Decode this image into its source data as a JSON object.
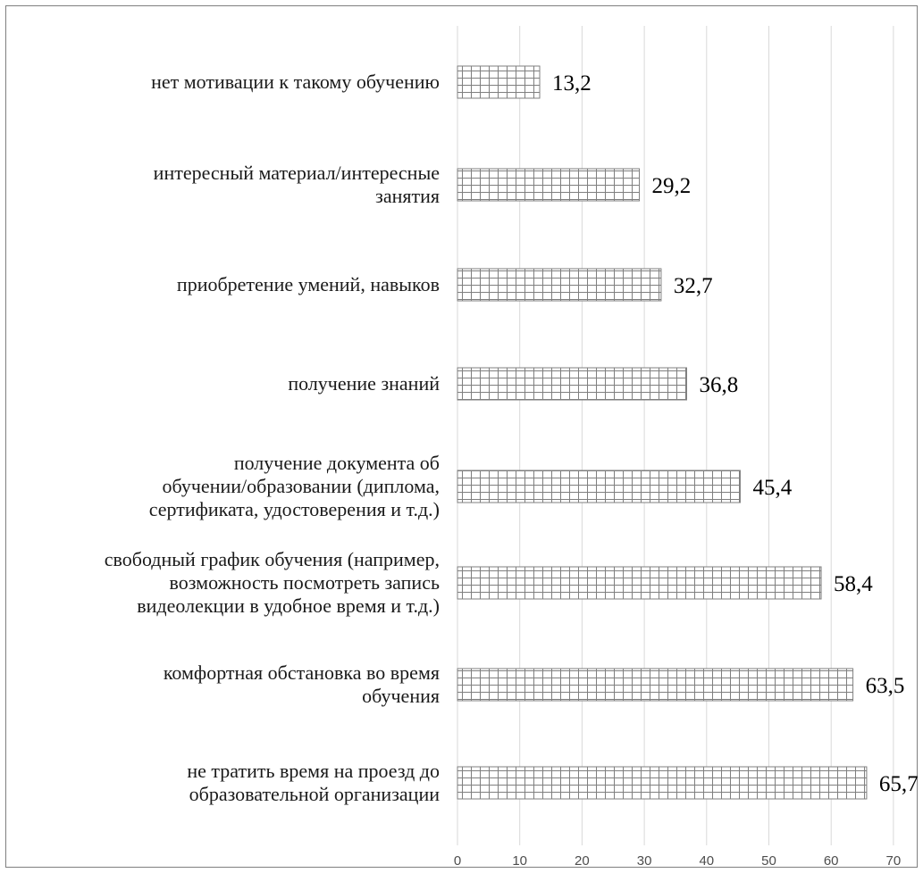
{
  "chart_data": {
    "type": "bar",
    "orientation": "horizontal",
    "categories": [
      "нет мотивации к такому  обучению",
      "интересный материал/интересные занятия",
      "приобретение умений, навыков",
      "получение знаний",
      "получение документа об обучении/образовании (диплома, сертификата, удостоверения и т.д.)",
      "свободный график обучения (например, возможность посмотреть запись видеолекции в удобное время и т.д.)",
      "комфортная  обстановка во время обучения",
      "не тратить время  на проезд до образовательной организации"
    ],
    "category_lines": [
      [
        "нет мотивации к такому  обучению"
      ],
      [
        "интересный материал/интересные",
        "занятия"
      ],
      [
        "приобретение умений, навыков"
      ],
      [
        "получение знаний"
      ],
      [
        "получение документа об",
        "обучении/образовании (диплома,",
        "сертификата, удостоверения и т.д.)"
      ],
      [
        "свободный график обучения (например,",
        "возможность посмотреть запись",
        "видеолекции в удобное время и т.д.)"
      ],
      [
        "комфортная  обстановка во время",
        "обучения"
      ],
      [
        "не тратить время  на проезд до",
        "образовательной организации"
      ]
    ],
    "values": [
      13.2,
      29.2,
      32.7,
      36.8,
      45.4,
      58.4,
      63.5,
      65.7
    ],
    "value_labels": [
      "13,2",
      "29,2",
      "32,7",
      "36,8",
      "45,4",
      "58,4",
      "63,5",
      "65,7"
    ],
    "xlim": [
      0,
      70
    ],
    "xticks": [
      0,
      10,
      20,
      30,
      40,
      50,
      60,
      70
    ],
    "grid": true,
    "bar_fill": "crosshatch",
    "colors": {
      "bar_stroke": "#7f7f7f",
      "grid": "#d9d9d9",
      "frame": "#7f7f7f"
    }
  }
}
